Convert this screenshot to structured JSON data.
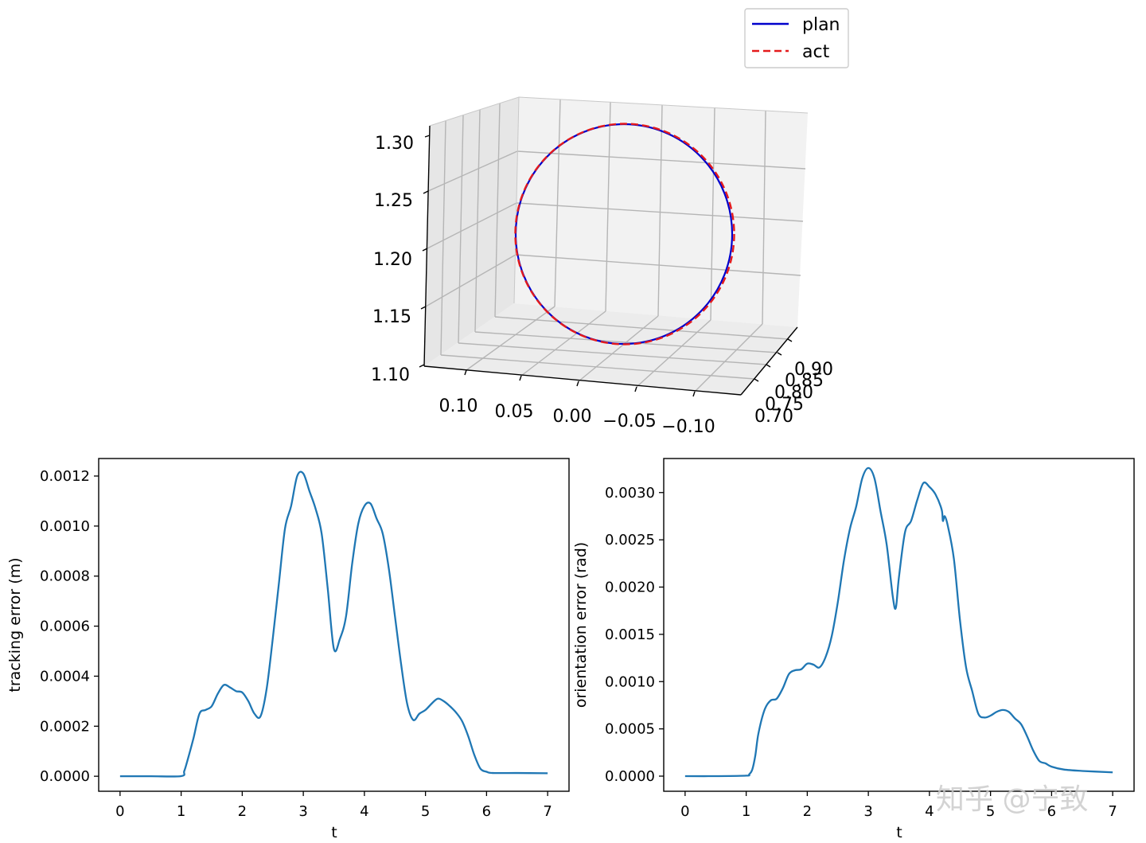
{
  "chart_data": [
    {
      "type": "line",
      "projection": "3d",
      "title": "",
      "legend": {
        "position": "top-center",
        "entries": [
          {
            "name": "plan",
            "color": "#0000cc",
            "style": "solid"
          },
          {
            "name": "act",
            "color": "#e41a1c",
            "style": "dashed"
          }
        ]
      },
      "xlabel": "",
      "ylabel": "",
      "zlabel": "",
      "x_ticks": [
        "0.70",
        "0.75",
        "0.80",
        "0.85",
        "0.90"
      ],
      "y_ticks": [
        "0.10",
        "0.05",
        "0.00",
        "−0.05",
        "−0.10"
      ],
      "z_ticks": [
        "1.10",
        "1.15",
        "1.20",
        "1.25",
        "1.30"
      ],
      "grid": true,
      "series": [
        {
          "name": "plan",
          "shape": "circle",
          "center": {
            "x": 0.8,
            "y": 0.0,
            "z": 1.2
          },
          "radius": 0.1
        },
        {
          "name": "act",
          "shape": "circle",
          "center": {
            "x": 0.8,
            "y": 0.0,
            "z": 1.2
          },
          "radius": 0.1
        }
      ]
    },
    {
      "type": "line",
      "title": "",
      "xlabel": "t",
      "ylabel": "tracking error (m)",
      "xlim": [
        -0.35,
        7.35
      ],
      "ylim": [
        -6e-05,
        0.00127
      ],
      "x_ticks": [
        0,
        1,
        2,
        3,
        4,
        5,
        6,
        7
      ],
      "y_ticks": [
        "0.0000",
        "0.0002",
        "0.0004",
        "0.0006",
        "0.0008",
        "0.0010",
        "0.0012"
      ],
      "y_tick_values": [
        0,
        0.0002,
        0.0004,
        0.0006,
        0.0008,
        0.001,
        0.0012
      ],
      "grid": false,
      "color": "#1f77b4",
      "x": [
        0,
        0.5,
        1.0,
        1.05,
        1.1,
        1.2,
        1.3,
        1.4,
        1.5,
        1.6,
        1.7,
        1.8,
        1.9,
        2.0,
        2.1,
        2.2,
        2.3,
        2.4,
        2.5,
        2.6,
        2.7,
        2.8,
        2.9,
        3.0,
        3.1,
        3.2,
        3.3,
        3.4,
        3.5,
        3.6,
        3.7,
        3.8,
        3.9,
        4.0,
        4.1,
        4.2,
        4.3,
        4.4,
        4.5,
        4.6,
        4.7,
        4.8,
        4.9,
        5.0,
        5.1,
        5.2,
        5.3,
        5.4,
        5.5,
        5.6,
        5.7,
        5.8,
        5.9,
        6.0,
        6.1,
        6.5,
        7.0
      ],
      "y": [
        0,
        0,
        5e-07,
        2e-05,
        6e-05,
        0.00015,
        0.00025,
        0.000265,
        0.00028,
        0.00033,
        0.000365,
        0.000355,
        0.00034,
        0.000335,
        0.0003,
        0.00025,
        0.00024,
        0.00035,
        0.00055,
        0.00077,
        0.00099,
        0.00108,
        0.0012,
        0.00121,
        0.00114,
        0.00107,
        0.00097,
        0.00075,
        0.00051,
        0.00055,
        0.00064,
        0.00085,
        0.00101,
        0.00108,
        0.00109,
        0.00103,
        0.00097,
        0.00083,
        0.00064,
        0.00045,
        0.00029,
        0.000225,
        0.00025,
        0.000265,
        0.00029,
        0.00031,
        0.0003,
        0.00028,
        0.000255,
        0.00022,
        0.00016,
        8.5e-05,
        3e-05,
        1.8e-05,
        1.3e-05,
        1.3e-05,
        1.2e-05
      ]
    },
    {
      "type": "line",
      "title": "",
      "xlabel": "t",
      "ylabel": "orientation error (rad)",
      "xlim": [
        -0.35,
        7.35
      ],
      "ylim": [
        -0.00016,
        0.00336
      ],
      "x_ticks": [
        0,
        1,
        2,
        3,
        4,
        5,
        6,
        7
      ],
      "y_ticks": [
        "0.0000",
        "0.0005",
        "0.0010",
        "0.0015",
        "0.0020",
        "0.0025",
        "0.0030"
      ],
      "y_tick_values": [
        0,
        0.0005,
        0.001,
        0.0015,
        0.002,
        0.0025,
        0.003
      ],
      "grid": false,
      "color": "#1f77b4",
      "x": [
        0,
        0.5,
        1.0,
        1.05,
        1.1,
        1.15,
        1.2,
        1.3,
        1.4,
        1.5,
        1.6,
        1.7,
        1.8,
        1.9,
        2.0,
        2.1,
        2.2,
        2.3,
        2.4,
        2.5,
        2.6,
        2.7,
        2.8,
        2.9,
        3.0,
        3.1,
        3.2,
        3.3,
        3.4,
        3.45,
        3.5,
        3.6,
        3.7,
        3.8,
        3.9,
        4.0,
        4.1,
        4.2,
        4.22,
        4.25,
        4.3,
        4.4,
        4.5,
        4.6,
        4.7,
        4.8,
        4.9,
        5.0,
        5.1,
        5.2,
        5.3,
        5.4,
        5.5,
        5.6,
        5.7,
        5.8,
        5.9,
        6.0,
        6.2,
        6.5,
        7.0
      ],
      "y": [
        0,
        0,
        5e-06,
        2e-05,
        7e-05,
        0.00022,
        0.00045,
        0.0007,
        0.0008,
        0.00082,
        0.00093,
        0.00108,
        0.00112,
        0.00113,
        0.00119,
        0.00118,
        0.00115,
        0.00126,
        0.00148,
        0.00184,
        0.00228,
        0.00262,
        0.00285,
        0.00315,
        0.00326,
        0.00315,
        0.0028,
        0.00245,
        0.0019,
        0.00178,
        0.0021,
        0.00258,
        0.0027,
        0.00292,
        0.0031,
        0.00306,
        0.00298,
        0.00282,
        0.0027,
        0.00275,
        0.00265,
        0.0023,
        0.00165,
        0.00115,
        0.0009,
        0.00066,
        0.00062,
        0.00064,
        0.00068,
        0.0007,
        0.00068,
        0.00061,
        0.00055,
        0.00042,
        0.00027,
        0.00016,
        0.000135,
        0.0001,
        7e-05,
        5.5e-05,
        4e-05
      ]
    }
  ],
  "watermark": "知乎 @宁致"
}
